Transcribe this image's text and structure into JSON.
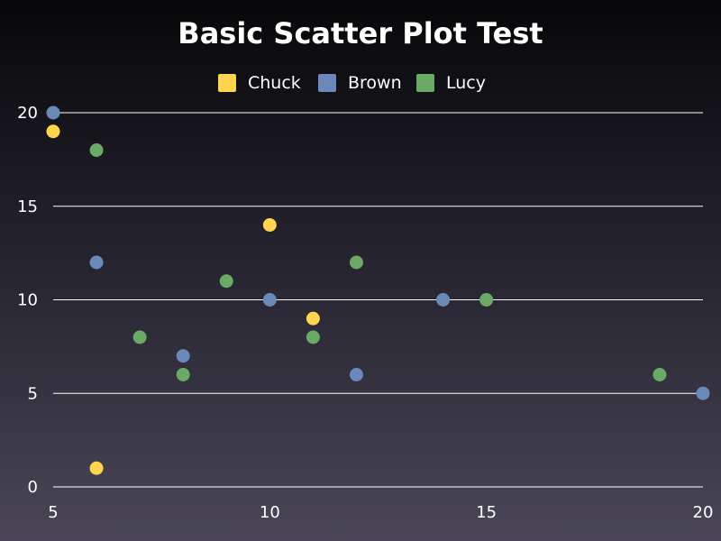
{
  "chart_data": {
    "type": "scatter",
    "title": "Basic Scatter Plot Test",
    "xlabel": "",
    "ylabel": "",
    "xlim": [
      5,
      20
    ],
    "ylim": [
      0,
      20
    ],
    "xticks": [
      5,
      10,
      15,
      20
    ],
    "yticks": [
      0,
      5,
      10,
      15,
      20
    ],
    "grid": "horizontal",
    "legend_position": "top-center",
    "series": [
      {
        "name": "Chuck",
        "color": "#ffd54f",
        "points": [
          [
            5,
            19
          ],
          [
            6,
            1
          ],
          [
            10,
            14
          ],
          [
            11,
            9
          ]
        ]
      },
      {
        "name": "Brown",
        "color": "#6b88b8",
        "points": [
          [
            5,
            20
          ],
          [
            6,
            12
          ],
          [
            8,
            7
          ],
          [
            10,
            10
          ],
          [
            12,
            6
          ],
          [
            14,
            10
          ],
          [
            20,
            5
          ]
        ]
      },
      {
        "name": "Lucy",
        "color": "#6aaa64",
        "points": [
          [
            6,
            18
          ],
          [
            7,
            8
          ],
          [
            8,
            6
          ],
          [
            9,
            11
          ],
          [
            11,
            8
          ],
          [
            12,
            12
          ],
          [
            15,
            10
          ],
          [
            19,
            6
          ]
        ]
      }
    ]
  }
}
